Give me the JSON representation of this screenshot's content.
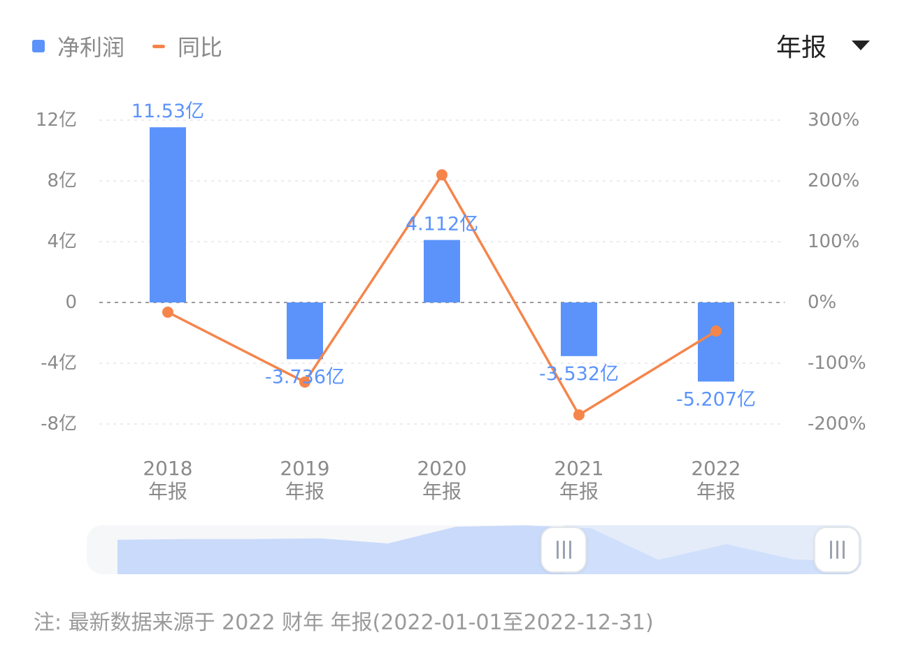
{
  "legend": {
    "bar_label": "净利润",
    "line_label": "同比"
  },
  "period_select": {
    "value": "年报",
    "icon": "caret-down-icon"
  },
  "chart_data": {
    "type": "bar",
    "categories": [
      "2018",
      "2019",
      "2020",
      "2021",
      "2022"
    ],
    "category_sublabel": "年报",
    "series": [
      {
        "name": "净利润",
        "type": "bar",
        "axis": "left",
        "color": "#5b93fb",
        "values": [
          11.53,
          -3.736,
          4.112,
          -3.532,
          -5.207
        ],
        "labels": [
          "11.53亿",
          "-3.736亿",
          "4.112亿",
          "-3.532亿",
          "-5.207亿"
        ]
      },
      {
        "name": "同比",
        "type": "line",
        "axis": "right",
        "color": "#f5854b",
        "values": [
          -16,
          -131,
          210,
          -185,
          -47
        ]
      }
    ],
    "y_left": {
      "ylim": [
        -8,
        12
      ],
      "ticks": [
        12,
        8,
        4,
        0,
        -4,
        -8
      ],
      "tick_labels": [
        "12亿",
        "8亿",
        "4亿",
        "0",
        "-4亿",
        "-8亿"
      ]
    },
    "y_right": {
      "ylim": [
        -200,
        300
      ],
      "ticks": [
        300,
        200,
        100,
        0,
        -100,
        -200
      ],
      "tick_labels": [
        "300%",
        "200%",
        "100%",
        "0%",
        "-100%",
        "-200%"
      ]
    },
    "grid": true,
    "legend_position": "top-left"
  },
  "zoom_slider": {
    "selected_range": [
      0.62,
      1.0
    ],
    "overview_values": [
      0.6,
      0.62,
      0.62,
      0.64,
      0.5,
      0.96,
      1.0,
      0.92,
      0.05,
      0.48,
      0.06,
      0.0
    ]
  },
  "footnote": "注: 最新数据来源于 2022 财年 年报(2022-01-01至2022-12-31)"
}
